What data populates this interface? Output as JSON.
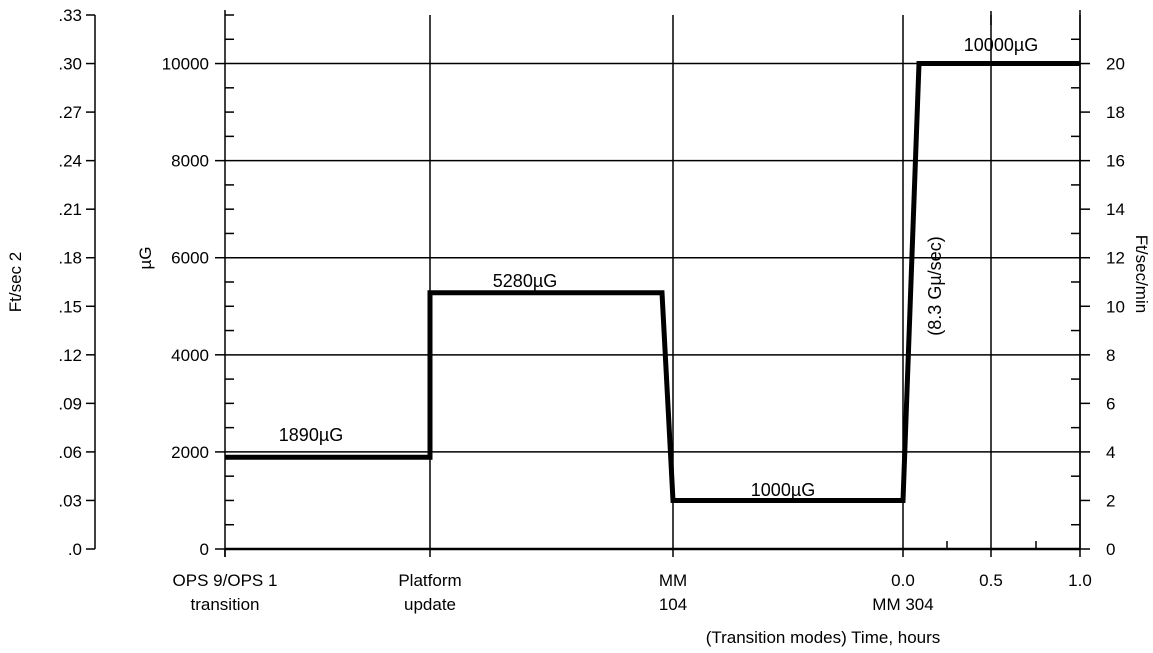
{
  "chart_data": {
    "type": "line",
    "title": "",
    "grid": true,
    "legend": "none",
    "xlabel": "(Transition modes) Time, hours",
    "x_tick_labels": [
      {
        "line1": "OPS 9/OPS 1",
        "line2": "transition"
      },
      {
        "line1": "Platform",
        "line2": "update"
      },
      {
        "line1": "MM",
        "line2": "104"
      },
      {
        "line1": "0.0",
        "line2": "MM 304"
      },
      {
        "line1": "0.5",
        "line2": ""
      },
      {
        "line1": "1.0",
        "line2": ""
      }
    ],
    "y_axes": {
      "left_outer": {
        "label": "Ft/sec 2",
        "ticks": [
          ".0",
          ".03",
          ".06",
          ".09",
          ".12",
          ".15",
          ".18",
          ".21",
          ".24",
          ".27",
          ".30",
          ".33"
        ]
      },
      "left_inner": {
        "label": "µG",
        "ylim": [
          0,
          11000
        ],
        "ticks": [
          "0",
          "2000",
          "4000",
          "6000",
          "8000",
          "10000"
        ]
      },
      "right": {
        "label": "Ft/sec/min",
        "ticks": [
          "0",
          "2",
          "4",
          "6",
          "8",
          "10",
          "12",
          "14",
          "16",
          "18",
          "20"
        ]
      }
    },
    "series": [
      {
        "x": [
          "OPS 9/OPS 1 transition",
          "Platform update",
          "Platform update",
          "MM 104 (approach)",
          "MM 104",
          "0.0 / MM 304",
          "0.04",
          "1.0"
        ],
        "y": [
          1890,
          1890,
          5280,
          5280,
          1000,
          1000,
          10000,
          10000
        ]
      }
    ],
    "annotations": [
      {
        "text": "1890µG"
      },
      {
        "text": "5280µG"
      },
      {
        "text": "1000µG"
      },
      {
        "text": "10000µG"
      },
      {
        "text": "(8.3 Gµ/sec)"
      }
    ]
  }
}
